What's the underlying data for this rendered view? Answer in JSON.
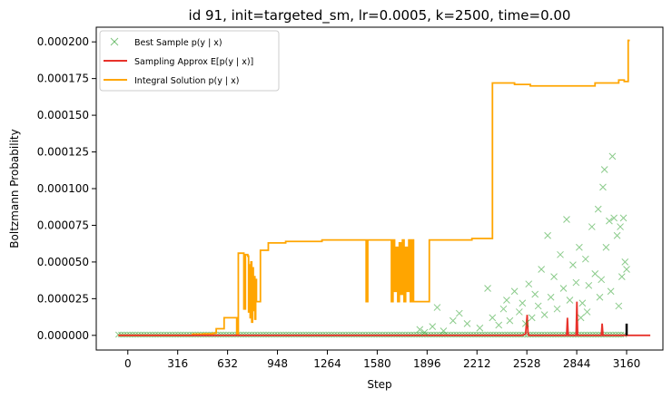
{
  "chart_data": {
    "type": "line",
    "title": "id 91, init=targeted_sm, lr=0.0005, k=2500, time=0.00",
    "xlabel": "Step",
    "ylabel": "Boltzmann Probability",
    "xlim": [
      -200,
      3390
    ],
    "ylim": [
      -1e-05,
      0.00021
    ],
    "xticks": [
      0,
      316,
      632,
      948,
      1264,
      1580,
      1896,
      2212,
      2528,
      2844,
      3160
    ],
    "yticks": [
      0,
      2.5e-05,
      5e-05,
      7.5e-05,
      0.0001,
      0.000125,
      0.00015,
      0.000175,
      0.0002
    ],
    "ytick_labels": [
      "0.000000",
      "0.000025",
      "0.000050",
      "0.000075",
      "0.000100",
      "0.000125",
      "0.000150",
      "0.000175",
      "0.000200"
    ],
    "xtick_labels": [
      "0",
      "316",
      "632",
      "948",
      "1264",
      "1580",
      "1896",
      "2212",
      "2528",
      "2844",
      "3160"
    ],
    "grid": false,
    "legend": {
      "position": "top-left",
      "entries": [
        {
          "label": "Best Sample p(y | x)",
          "marker": "x",
          "color": "#2ca02c"
        },
        {
          "label": "Sampling Approx E[p(y | x)]",
          "marker": "line",
          "color": "#e8322b"
        },
        {
          "label": "Integral Solution p(y | x)",
          "marker": "line",
          "color": "#ffa500"
        }
      ]
    },
    "series": [
      {
        "name": "Integral Solution p(y | x)",
        "kind": "step",
        "color": "#ffa500",
        "points": [
          [
            -60,
            0.0
          ],
          [
            400,
            0.0
          ],
          [
            410,
            8e-07
          ],
          [
            480,
            1e-06
          ],
          [
            540,
            1.5e-06
          ],
          [
            560,
            4.5e-06
          ],
          [
            600,
            4.5e-06
          ],
          [
            610,
            1.2e-05
          ],
          [
            680,
            1.2e-05
          ],
          [
            690,
            1e-06
          ],
          [
            700,
            5.6e-05
          ],
          [
            730,
            5.6e-05
          ],
          [
            735,
            1.8e-05
          ],
          [
            745,
            5.5e-05
          ],
          [
            760,
            5.4e-05
          ],
          [
            765,
            1.6e-05
          ],
          [
            770,
            4.8e-05
          ],
          [
            775,
            1.2e-05
          ],
          [
            780,
            5e-05
          ],
          [
            785,
            9e-06
          ],
          [
            790,
            4.6e-05
          ],
          [
            795,
            1.7e-05
          ],
          [
            800,
            4e-05
          ],
          [
            805,
            1.1e-05
          ],
          [
            810,
            3.8e-05
          ],
          [
            815,
            2.3e-05
          ],
          [
            830,
            2.3e-05
          ],
          [
            840,
            5.8e-05
          ],
          [
            880,
            5.8e-05
          ],
          [
            890,
            6.3e-05
          ],
          [
            1000,
            6.4e-05
          ],
          [
            1100,
            6.4e-05
          ],
          [
            1200,
            6.4e-05
          ],
          [
            1230,
            6.5e-05
          ],
          [
            1500,
            6.5e-05
          ],
          [
            1510,
            2.3e-05
          ],
          [
            1520,
            6.5e-05
          ],
          [
            1660,
            6.5e-05
          ],
          [
            1670,
            2.3e-05
          ],
          [
            1680,
            6.5e-05
          ],
          [
            1690,
            3e-05
          ],
          [
            1700,
            6e-05
          ],
          [
            1710,
            2.3e-05
          ],
          [
            1720,
            6.3e-05
          ],
          [
            1730,
            2.8e-05
          ],
          [
            1740,
            6.5e-05
          ],
          [
            1750,
            2.3e-05
          ],
          [
            1760,
            6e-05
          ],
          [
            1770,
            3e-05
          ],
          [
            1780,
            6.5e-05
          ],
          [
            1790,
            2.3e-05
          ],
          [
            1800,
            6.5e-05
          ],
          [
            1810,
            2.3e-05
          ],
          [
            1900,
            2.3e-05
          ],
          [
            1910,
            6.5e-05
          ],
          [
            2000,
            6.5e-05
          ],
          [
            2180,
            6.6e-05
          ],
          [
            2300,
            6.6e-05
          ],
          [
            2310,
            0.000172
          ],
          [
            2440,
            0.000172
          ],
          [
            2450,
            0.000171
          ],
          [
            2540,
            0.000171
          ],
          [
            2550,
            0.00017
          ],
          [
            2950,
            0.00017
          ],
          [
            2960,
            0.000172
          ],
          [
            3100,
            0.000172
          ],
          [
            3110,
            0.000174
          ],
          [
            3140,
            0.000174
          ],
          [
            3145,
            0.000173
          ],
          [
            3160,
            0.000173
          ],
          [
            3170,
            0.000201
          ],
          [
            3180,
            0.000201
          ]
        ]
      },
      {
        "name": "Sampling Approx E[p(y | x)]",
        "kind": "line",
        "color": "#e8322b",
        "points": [
          [
            -60,
            0.0
          ],
          [
            2500,
            0.0
          ],
          [
            2520,
            1e-06
          ],
          [
            2530,
            1.4e-05
          ],
          [
            2535,
            2e-06
          ],
          [
            2540,
            0.0
          ],
          [
            2780,
            0.0
          ],
          [
            2785,
            1.2e-05
          ],
          [
            2790,
            0.0
          ],
          [
            2840,
            0.0
          ],
          [
            2845,
            2.3e-05
          ],
          [
            2850,
            0.0
          ],
          [
            3000,
            0.0
          ],
          [
            3005,
            8e-06
          ],
          [
            3010,
            0.0
          ],
          [
            3310,
            0.0
          ]
        ]
      },
      {
        "name": "Best Sample p(y | x)",
        "kind": "scatter",
        "marker": "x",
        "color": "#2ca02c",
        "points": [
          [
            1850,
            4e-06
          ],
          [
            1880,
            2e-06
          ],
          [
            1930,
            6e-06
          ],
          [
            1960,
            1.9e-05
          ],
          [
            2000,
            3e-06
          ],
          [
            2060,
            1e-05
          ],
          [
            2100,
            1.5e-05
          ],
          [
            2150,
            8e-06
          ],
          [
            2230,
            5e-06
          ],
          [
            2280,
            3.2e-05
          ],
          [
            2310,
            1.2e-05
          ],
          [
            2350,
            7e-06
          ],
          [
            2380,
            1.8e-05
          ],
          [
            2400,
            2.4e-05
          ],
          [
            2420,
            1e-05
          ],
          [
            2450,
            3e-05
          ],
          [
            2480,
            1.6e-05
          ],
          [
            2500,
            2.2e-05
          ],
          [
            2520,
            8e-06
          ],
          [
            2540,
            3.5e-05
          ],
          [
            2560,
            1.2e-05
          ],
          [
            2580,
            2.8e-05
          ],
          [
            2600,
            2e-05
          ],
          [
            2620,
            4.5e-05
          ],
          [
            2640,
            1.4e-05
          ],
          [
            2660,
            6.8e-05
          ],
          [
            2680,
            2.6e-05
          ],
          [
            2700,
            4e-05
          ],
          [
            2720,
            1.8e-05
          ],
          [
            2740,
            5.5e-05
          ],
          [
            2760,
            3.2e-05
          ],
          [
            2780,
            7.9e-05
          ],
          [
            2800,
            2.4e-05
          ],
          [
            2820,
            4.8e-05
          ],
          [
            2840,
            3.6e-05
          ],
          [
            2860,
            6e-05
          ],
          [
            2880,
            2.2e-05
          ],
          [
            2900,
            5.2e-05
          ],
          [
            2920,
            3.4e-05
          ],
          [
            2940,
            7.4e-05
          ],
          [
            2960,
            4.2e-05
          ],
          [
            2980,
            8.6e-05
          ],
          [
            3000,
            3.8e-05
          ],
          [
            3020,
            0.000113
          ],
          [
            3010,
            0.000101
          ],
          [
            3030,
            6e-05
          ],
          [
            3050,
            7.8e-05
          ],
          [
            3070,
            0.000122
          ],
          [
            3080,
            8e-05
          ],
          [
            3100,
            6.8e-05
          ],
          [
            3120,
            7.4e-05
          ],
          [
            3140,
            8e-05
          ],
          [
            3150,
            5e-05
          ],
          [
            3160,
            4.5e-05
          ],
          [
            2870,
            1.2e-05
          ],
          [
            2910,
            1.6e-05
          ],
          [
            2990,
            2.6e-05
          ],
          [
            3060,
            3e-05
          ],
          [
            3110,
            2e-05
          ],
          [
            3130,
            4e-05
          ]
        ]
      },
      {
        "name": "",
        "kind": "line",
        "color": "#000000",
        "points": [
          [
            3160,
            0.0
          ],
          [
            3160,
            8e-06
          ]
        ]
      }
    ]
  }
}
